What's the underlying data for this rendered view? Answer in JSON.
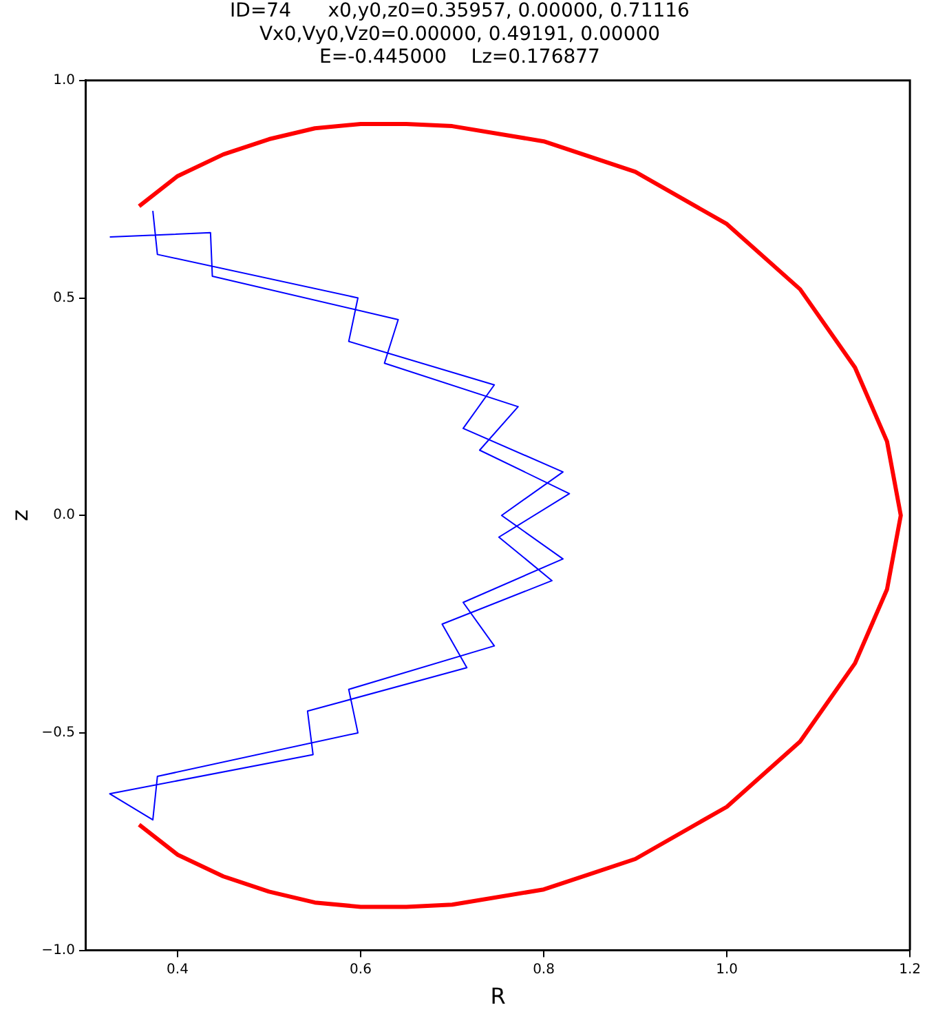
{
  "chart_data": {
    "type": "line",
    "title": "ID=74      x0,y0,z0=0.35957, 0.00000, 0.71116\nVx0,Vy0,Vz0=0.00000, 0.49191, 0.00000\nE=-0.445000    Lz=0.176877",
    "xlabel": "R",
    "ylabel": "z",
    "xlim": [
      0.3,
      1.2
    ],
    "xticks": [
      0.4,
      0.6,
      0.8,
      {
        "value": 1,
        "label": "1.0"
      },
      1.2
    ],
    "ylim": [
      -1,
      1
    ],
    "yticks": [
      {
        "value": -1,
        "label": "−1.0"
      },
      {
        "value": -0.5,
        "label": "−0.5"
      },
      {
        "value": 0,
        "label": "0.0"
      },
      0.5,
      {
        "value": 1,
        "label": "1.0"
      }
    ],
    "grid": false,
    "legend": false,
    "marker": "none",
    "series": [
      {
        "color": "#0000ff",
        "x": [
          0.373,
          0.378,
          0.597,
          0.587,
          0.746,
          0.712,
          0.821,
          0.754,
          0.821,
          0.712,
          0.746,
          0.587,
          0.597,
          0.378,
          0.373,
          0.326,
          0.548,
          0.542,
          0.716,
          0.689,
          0.809,
          0.751,
          0.828,
          0.73,
          0.772,
          0.626,
          0.641,
          0.438,
          0.436,
          0.326
        ],
        "values": [
          0.7,
          0.6,
          0.5,
          0.4,
          0.3,
          0.2,
          0.1,
          0,
          -0.1,
          -0.2,
          -0.3,
          -0.4,
          -0.5,
          -0.6,
          -0.7,
          -0.64,
          -0.55,
          -0.45,
          -0.35,
          -0.25,
          -0.15,
          -0.05,
          0.05,
          0.15,
          0.25,
          0.35,
          0.45,
          0.55,
          0.65,
          0.64
        ]
      },
      {
        "color": "#ff0000",
        "x": [
          0.358,
          0.4,
          0.45,
          0.5,
          0.55,
          0.6,
          0.65,
          0.7,
          0.8,
          0.9,
          1.0,
          1.08,
          1.14,
          1.175,
          1.19,
          1.175,
          1.14,
          1.08,
          1.0,
          0.9,
          0.8,
          0.7,
          0.65,
          0.6,
          0.55,
          0.5,
          0.45,
          0.4,
          0.358
        ],
        "values": [
          0.711,
          0.78,
          0.83,
          0.865,
          0.89,
          0.9,
          0.9,
          0.895,
          0.86,
          0.79,
          0.67,
          0.52,
          0.34,
          0.17,
          0,
          -0.17,
          -0.34,
          -0.52,
          -0.67,
          -0.79,
          -0.86,
          -0.895,
          -0.9,
          -0.9,
          -0.89,
          -0.865,
          -0.83,
          -0.78,
          -0.711
        ]
      }
    ]
  }
}
